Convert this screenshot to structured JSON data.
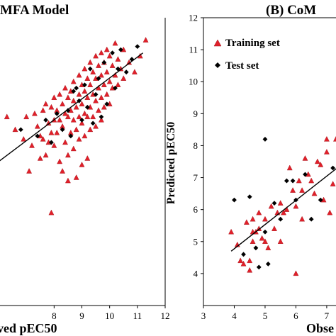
{
  "chart_data": [
    {
      "type": "scatter",
      "title": "MFA Model",
      "xlabel": "ved pEC50",
      "xlim": [
        6,
        12
      ],
      "ylim": [
        3,
        12
      ],
      "x_ticks": [
        "8",
        "9",
        "10",
        "11",
        "12"
      ],
      "grid": false,
      "series": [
        {
          "name": "Training set",
          "marker": "triangle",
          "color": "#e0202a",
          "points": [
            [
              6.3,
              8.9
            ],
            [
              6.6,
              8.5
            ],
            [
              6.9,
              8.2
            ],
            [
              7.0,
              8.9
            ],
            [
              7.1,
              7.2
            ],
            [
              7.2,
              8.0
            ],
            [
              7.3,
              9.0
            ],
            [
              7.4,
              8.6
            ],
            [
              7.5,
              8.3
            ],
            [
              7.5,
              7.6
            ],
            [
              7.6,
              9.1
            ],
            [
              7.6,
              8.2
            ],
            [
              7.7,
              9.3
            ],
            [
              7.7,
              7.7
            ],
            [
              7.8,
              8.7
            ],
            [
              7.8,
              8.1
            ],
            [
              7.9,
              9.2
            ],
            [
              7.9,
              8.4
            ],
            [
              7.9,
              5.9
            ],
            [
              8.0,
              9.5
            ],
            [
              8.0,
              8.8
            ],
            [
              8.0,
              8.0
            ],
            [
              8.1,
              9.1
            ],
            [
              8.1,
              8.4
            ],
            [
              8.2,
              9.6
            ],
            [
              8.2,
              8.8
            ],
            [
              8.2,
              7.5
            ],
            [
              8.3,
              9.3
            ],
            [
              8.3,
              8.6
            ],
            [
              8.3,
              7.2
            ],
            [
              8.4,
              9.8
            ],
            [
              8.4,
              9.0
            ],
            [
              8.4,
              8.1
            ],
            [
              8.5,
              9.5
            ],
            [
              8.5,
              8.9
            ],
            [
              8.5,
              7.7
            ],
            [
              8.5,
              6.9
            ],
            [
              8.6,
              9.7
            ],
            [
              8.6,
              9.1
            ],
            [
              8.6,
              8.4
            ],
            [
              8.7,
              10.0
            ],
            [
              8.7,
              9.4
            ],
            [
              8.7,
              8.8
            ],
            [
              8.7,
              7.9
            ],
            [
              8.8,
              9.2
            ],
            [
              8.8,
              8.5
            ],
            [
              8.8,
              7.0
            ],
            [
              8.9,
              10.2
            ],
            [
              8.9,
              9.6
            ],
            [
              8.9,
              8.9
            ],
            [
              8.9,
              8.2
            ],
            [
              9.0,
              9.9
            ],
            [
              9.0,
              9.3
            ],
            [
              9.0,
              8.7
            ],
            [
              9.0,
              7.4
            ],
            [
              9.1,
              10.4
            ],
            [
              9.1,
              9.7
            ],
            [
              9.1,
              9.0
            ],
            [
              9.1,
              8.3
            ],
            [
              9.2,
              10.1
            ],
            [
              9.2,
              9.5
            ],
            [
              9.2,
              8.9
            ],
            [
              9.2,
              7.6
            ],
            [
              9.3,
              10.6
            ],
            [
              9.3,
              9.9
            ],
            [
              9.3,
              9.2
            ],
            [
              9.3,
              8.5
            ],
            [
              9.4,
              10.3
            ],
            [
              9.4,
              9.6
            ],
            [
              9.4,
              8.9
            ],
            [
              9.5,
              10.8
            ],
            [
              9.5,
              10.1
            ],
            [
              9.5,
              9.4
            ],
            [
              9.5,
              8.6
            ],
            [
              9.6,
              10.5
            ],
            [
              9.6,
              9.8
            ],
            [
              9.6,
              9.1
            ],
            [
              9.7,
              10.9
            ],
            [
              9.7,
              10.2
            ],
            [
              9.7,
              9.5
            ],
            [
              9.7,
              8.8
            ],
            [
              9.8,
              10.6
            ],
            [
              9.8,
              9.9
            ],
            [
              9.8,
              9.2
            ],
            [
              9.9,
              11.0
            ],
            [
              9.9,
              10.3
            ],
            [
              9.9,
              9.6
            ],
            [
              10.0,
              10.8
            ],
            [
              10.0,
              10.0
            ],
            [
              10.0,
              9.3
            ],
            [
              10.1,
              10.5
            ],
            [
              10.1,
              9.8
            ],
            [
              10.2,
              11.2
            ],
            [
              10.2,
              10.2
            ],
            [
              10.3,
              10.7
            ],
            [
              10.3,
              9.9
            ],
            [
              10.4,
              10.4
            ],
            [
              10.5,
              11.0
            ],
            [
              10.5,
              10.1
            ],
            [
              10.7,
              10.6
            ],
            [
              10.9,
              10.3
            ],
            [
              11.1,
              10.8
            ],
            [
              11.3,
              11.3
            ]
          ]
        },
        {
          "name": "Test set",
          "marker": "diamond",
          "color": "#000000",
          "points": [
            [
              6.8,
              8.5
            ],
            [
              7.4,
              8.3
            ],
            [
              7.7,
              8.8
            ],
            [
              7.9,
              8.1
            ],
            [
              8.1,
              9.0
            ],
            [
              8.3,
              8.5
            ],
            [
              8.5,
              9.1
            ],
            [
              8.6,
              8.3
            ],
            [
              8.7,
              9.7
            ],
            [
              8.9,
              9.4
            ],
            [
              9.0,
              8.8
            ],
            [
              9.1,
              9.9
            ],
            [
              9.2,
              9.2
            ],
            [
              9.3,
              10.4
            ],
            [
              9.5,
              9.6
            ],
            [
              9.6,
              10.1
            ],
            [
              9.8,
              10.6
            ],
            [
              9.9,
              9.3
            ],
            [
              10.1,
              10.9
            ],
            [
              10.2,
              9.8
            ],
            [
              10.4,
              11.0
            ],
            [
              10.6,
              10.3
            ],
            [
              10.8,
              10.7
            ],
            [
              11.0,
              11.1
            ],
            [
              9.4,
              8.7
            ],
            [
              8.8,
              9.8
            ],
            [
              9.7,
              8.9
            ],
            [
              10.3,
              10.4
            ]
          ]
        }
      ],
      "trendline": {
        "x": [
          6.0,
          11.2
        ],
        "y": [
          7.5,
          10.9
        ]
      }
    },
    {
      "type": "scatter",
      "title": "(B) CoM",
      "xlabel": "Obse",
      "ylabel": "Predicted pEC50",
      "xlim": [
        3,
        7.6
      ],
      "ylim": [
        3,
        12
      ],
      "x_ticks": [
        "3",
        "4",
        "5",
        "6",
        "7"
      ],
      "y_ticks": [
        "4",
        "5",
        "6",
        "7",
        "8",
        "9",
        "10",
        "11",
        "12"
      ],
      "grid": false,
      "legend": {
        "position": "top-left",
        "entries": [
          "Training set",
          "Test set"
        ]
      },
      "series": [
        {
          "name": "Training set",
          "marker": "triangle",
          "color": "#e0202a",
          "points": [
            [
              3.9,
              5.3
            ],
            [
              4.1,
              4.9
            ],
            [
              4.2,
              4.4
            ],
            [
              4.3,
              4.3
            ],
            [
              4.4,
              5.6
            ],
            [
              4.5,
              4.4
            ],
            [
              4.5,
              4.1
            ],
            [
              4.6,
              5.7
            ],
            [
              4.6,
              5.0
            ],
            [
              4.7,
              5.3
            ],
            [
              4.8,
              5.9
            ],
            [
              4.8,
              5.4
            ],
            [
              4.9,
              5.1
            ],
            [
              5.0,
              5.0
            ],
            [
              5.0,
              5.7
            ],
            [
              5.1,
              4.8
            ],
            [
              5.2,
              6.1
            ],
            [
              5.3,
              5.4
            ],
            [
              5.4,
              5.9
            ],
            [
              5.5,
              6.2
            ],
            [
              5.6,
              5.9
            ],
            [
              5.7,
              6.0
            ],
            [
              5.8,
              7.3
            ],
            [
              5.9,
              6.6
            ],
            [
              6.0,
              6.1
            ],
            [
              6.0,
              4.0
            ],
            [
              6.1,
              6.9
            ],
            [
              6.2,
              6.6
            ],
            [
              6.3,
              7.6
            ],
            [
              6.4,
              7.1
            ],
            [
              6.5,
              6.9
            ],
            [
              6.6,
              6.5
            ],
            [
              6.7,
              7.5
            ],
            [
              6.8,
              7.4
            ],
            [
              6.9,
              6.3
            ],
            [
              7.0,
              7.8
            ],
            [
              7.0,
              8.2
            ],
            [
              7.1,
              5.9
            ],
            [
              7.2,
              6.8
            ],
            [
              7.3,
              8.2
            ],
            [
              7.4,
              6.6
            ],
            [
              7.5,
              7.5
            ],
            [
              7.5,
              6.3
            ],
            [
              4.6,
              5.3
            ],
            [
              5.5,
              5.0
            ],
            [
              6.2,
              5.7
            ]
          ]
        },
        {
          "name": "Test set",
          "marker": "diamond",
          "color": "#000000",
          "points": [
            [
              4.0,
              6.3
            ],
            [
              4.3,
              4.6
            ],
            [
              4.5,
              6.4
            ],
            [
              4.7,
              4.8
            ],
            [
              4.8,
              4.2
            ],
            [
              5.0,
              8.2
            ],
            [
              5.0,
              5.3
            ],
            [
              5.1,
              4.3
            ],
            [
              5.3,
              6.2
            ],
            [
              5.5,
              5.7
            ],
            [
              5.7,
              6.9
            ],
            [
              6.0,
              6.3
            ],
            [
              6.3,
              7.1
            ],
            [
              6.5,
              5.7
            ],
            [
              6.8,
              6.3
            ],
            [
              7.2,
              7.3
            ],
            [
              7.4,
              5.8
            ],
            [
              7.5,
              7.6
            ],
            [
              5.9,
              6.9
            ]
          ]
        }
      ],
      "trendline": {
        "x": [
          3.9,
          7.6
        ],
        "y": [
          4.7,
          7.5
        ]
      }
    }
  ]
}
